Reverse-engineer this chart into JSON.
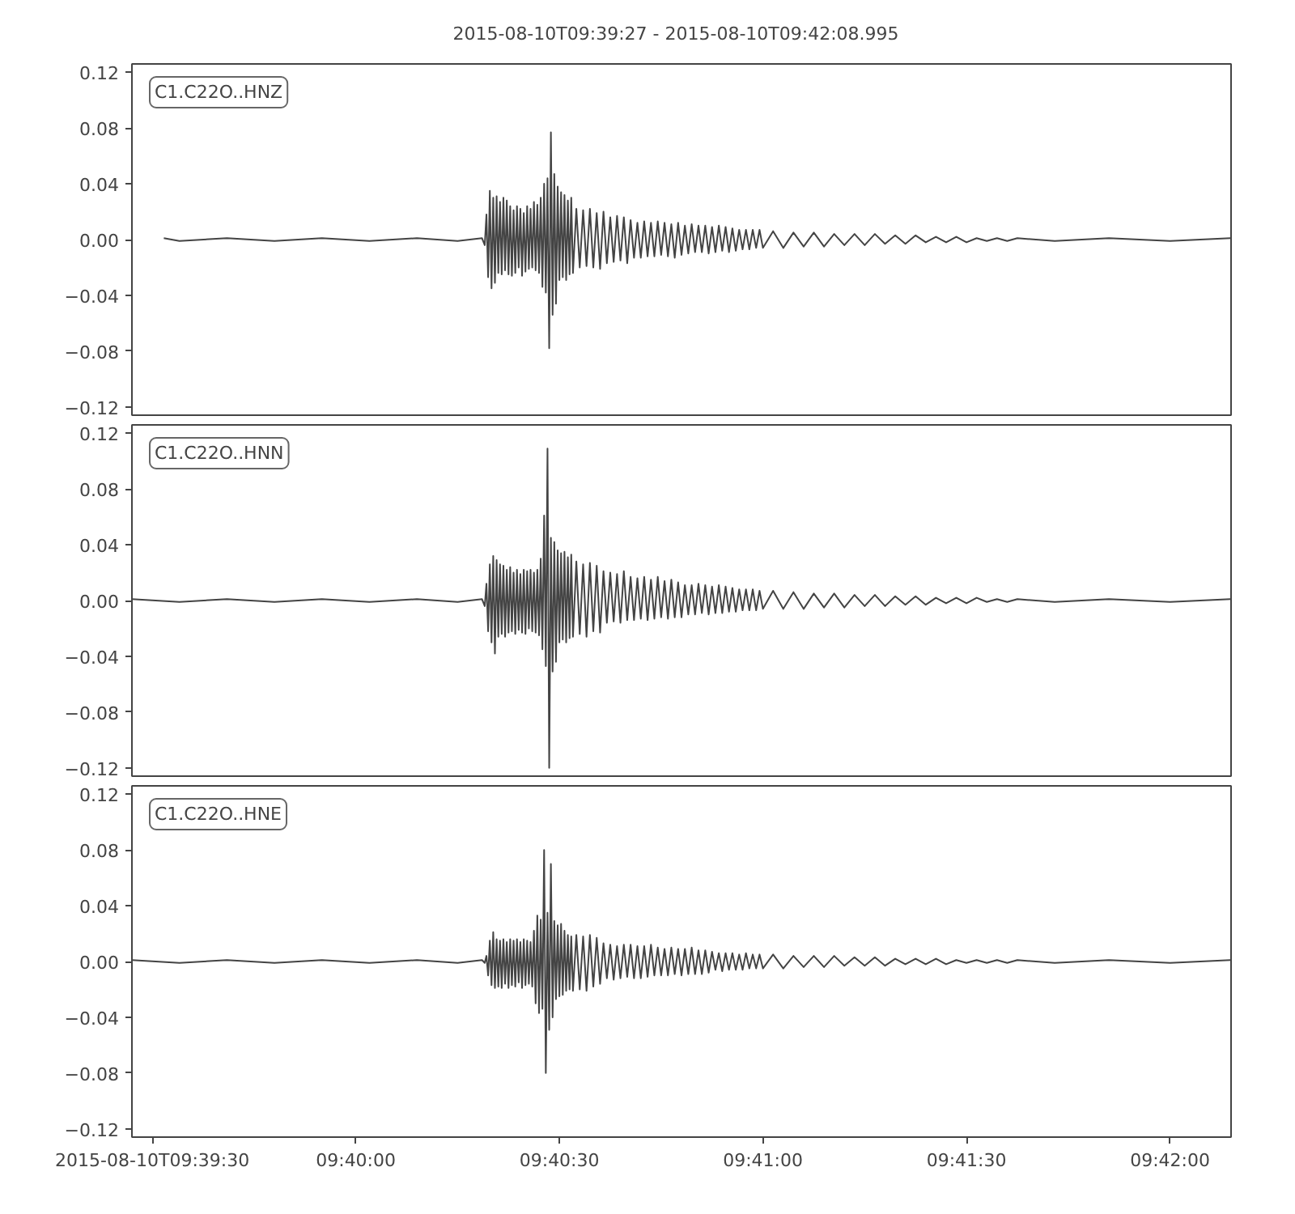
{
  "chart_data": [
    {
      "type": "line",
      "title": "2015-08-10T09:39:27  -  2015-08-10T09:42:08.995",
      "annotations": [
        "C1.C22O..HNZ"
      ],
      "color": "#444444",
      "tick_labels": "y",
      "xlim": [
        "2015-08-10T09:39:27",
        "2015-08-10T09:42:08.995"
      ],
      "ylim": [
        -0.126,
        0.126
      ],
      "yticks": [
        {
          "value": -0.12,
          "label": "−0.12"
        },
        {
          "value": -0.08,
          "label": "−0.08"
        },
        {
          "value": -0.04,
          "label": "−0.04"
        },
        {
          "value": 0,
          "label": "0.00"
        },
        0.04,
        0.08,
        0.12
      ],
      "x": [
        "2015-08-10T09:39:31.7",
        "2015-08-10T09:39:34",
        "2015-08-10T09:39:41",
        "2015-08-10T09:39:48",
        "2015-08-10T09:39:55",
        "2015-08-10T09:40:02",
        "2015-08-10T09:40:09",
        "2015-08-10T09:40:15",
        "2015-08-10T09:40:18.6",
        "2015-08-10T09:40:19",
        "2015-08-10T09:40:19.25",
        "2015-08-10T09:40:19.5",
        "2015-08-10T09:40:19.75",
        "2015-08-10T09:40:20",
        "2015-08-10T09:40:20.25",
        "2015-08-10T09:40:20.5",
        "2015-08-10T09:40:20.75",
        "2015-08-10T09:40:21",
        "2015-08-10T09:40:21.25",
        "2015-08-10T09:40:21.5",
        "2015-08-10T09:40:21.75",
        "2015-08-10T09:40:22",
        "2015-08-10T09:40:22.25",
        "2015-08-10T09:40:22.5",
        "2015-08-10T09:40:22.75",
        "2015-08-10T09:40:23",
        "2015-08-10T09:40:23.25",
        "2015-08-10T09:40:23.5",
        "2015-08-10T09:40:23.75",
        "2015-08-10T09:40:24",
        "2015-08-10T09:40:24.25",
        "2015-08-10T09:40:24.5",
        "2015-08-10T09:40:24.75",
        "2015-08-10T09:40:25",
        "2015-08-10T09:40:25.25",
        "2015-08-10T09:40:25.5",
        "2015-08-10T09:40:25.75",
        "2015-08-10T09:40:26",
        "2015-08-10T09:40:26.25",
        "2015-08-10T09:40:26.5",
        "2015-08-10T09:40:26.75",
        "2015-08-10T09:40:27",
        "2015-08-10T09:40:27.25",
        "2015-08-10T09:40:27.5",
        "2015-08-10T09:40:27.75",
        "2015-08-10T09:40:28",
        "2015-08-10T09:40:28.25",
        "2015-08-10T09:40:28.5",
        "2015-08-10T09:40:28.75",
        "2015-08-10T09:40:29",
        "2015-08-10T09:40:29.25",
        "2015-08-10T09:40:29.5",
        "2015-08-10T09:40:29.75",
        "2015-08-10T09:40:30",
        "2015-08-10T09:40:30.25",
        "2015-08-10T09:40:30.5",
        "2015-08-10T09:40:30.75",
        "2015-08-10T09:40:31",
        "2015-08-10T09:40:31.25",
        "2015-08-10T09:40:31.5",
        "2015-08-10T09:40:31.75",
        "2015-08-10T09:40:32",
        "2015-08-10T09:40:32.5",
        "2015-08-10T09:40:33",
        "2015-08-10T09:40:33.5",
        "2015-08-10T09:40:34",
        "2015-08-10T09:40:34.5",
        "2015-08-10T09:40:35",
        "2015-08-10T09:40:35.5",
        "2015-08-10T09:40:36",
        "2015-08-10T09:40:36.5",
        "2015-08-10T09:40:37",
        "2015-08-10T09:40:37.5",
        "2015-08-10T09:40:38",
        "2015-08-10T09:40:38.5",
        "2015-08-10T09:40:39",
        "2015-08-10T09:40:39.5",
        "2015-08-10T09:40:40",
        "2015-08-10T09:40:40.5",
        "2015-08-10T09:40:41",
        "2015-08-10T09:40:41.5",
        "2015-08-10T09:40:42",
        "2015-08-10T09:40:42.5",
        "2015-08-10T09:40:43",
        "2015-08-10T09:40:43.5",
        "2015-08-10T09:40:44",
        "2015-08-10T09:40:44.5",
        "2015-08-10T09:40:45",
        "2015-08-10T09:40:45.5",
        "2015-08-10T09:40:46",
        "2015-08-10T09:40:46.5",
        "2015-08-10T09:40:47",
        "2015-08-10T09:40:47.5",
        "2015-08-10T09:40:48",
        "2015-08-10T09:40:48.5",
        "2015-08-10T09:40:49",
        "2015-08-10T09:40:49.5",
        "2015-08-10T09:40:50",
        "2015-08-10T09:40:50.5",
        "2015-08-10T09:40:51",
        "2015-08-10T09:40:51.5",
        "2015-08-10T09:40:52",
        "2015-08-10T09:40:52.5",
        "2015-08-10T09:40:53",
        "2015-08-10T09:40:53.5",
        "2015-08-10T09:40:54",
        "2015-08-10T09:40:54.5",
        "2015-08-10T09:40:55",
        "2015-08-10T09:40:55.5",
        "2015-08-10T09:40:56",
        "2015-08-10T09:40:56.5",
        "2015-08-10T09:40:57",
        "2015-08-10T09:40:57.5",
        "2015-08-10T09:40:58",
        "2015-08-10T09:40:58.5",
        "2015-08-10T09:40:59",
        "2015-08-10T09:40:59.5",
        "2015-08-10T09:41:00",
        "2015-08-10T09:41:01.5",
        "2015-08-10T09:41:03",
        "2015-08-10T09:41:04.5",
        "2015-08-10T09:41:06",
        "2015-08-10T09:41:07.5",
        "2015-08-10T09:41:09",
        "2015-08-10T09:41:10.5",
        "2015-08-10T09:41:12",
        "2015-08-10T09:41:13.5",
        "2015-08-10T09:41:15",
        "2015-08-10T09:41:16.5",
        "2015-08-10T09:41:18",
        "2015-08-10T09:41:19.5",
        "2015-08-10T09:41:21",
        "2015-08-10T09:41:22.5",
        "2015-08-10T09:41:24",
        "2015-08-10T09:41:25.5",
        "2015-08-10T09:41:27",
        "2015-08-10T09:41:28.5",
        "2015-08-10T09:41:30",
        "2015-08-10T09:41:31.5",
        "2015-08-10T09:41:33",
        "2015-08-10T09:41:34.5",
        "2015-08-10T09:41:36",
        "2015-08-10T09:41:37.5",
        "2015-08-10T09:41:43",
        "2015-08-10T09:41:51",
        "2015-08-10T09:42:00",
        "2015-08-10T09:42:08.9"
      ],
      "values": [
        0.001,
        -0.001,
        0.001,
        -0.001,
        0.001,
        -0.001,
        0.001,
        -0.001,
        0.001,
        -0.004,
        0.018,
        -0.027,
        0.035,
        -0.035,
        0.03,
        -0.031,
        0.031,
        -0.024,
        0.027,
        -0.025,
        0.03,
        -0.022,
        0.028,
        -0.025,
        0.024,
        -0.026,
        0.021,
        -0.024,
        0.024,
        -0.02,
        0.022,
        -0.026,
        0.019,
        -0.023,
        0.024,
        -0.021,
        0.022,
        -0.02,
        0.027,
        -0.022,
        0.025,
        -0.024,
        0.03,
        -0.034,
        0.04,
        -0.038,
        0.044,
        -0.078,
        0.077,
        -0.054,
        0.047,
        -0.046,
        0.038,
        -0.029,
        0.034,
        -0.027,
        0.032,
        -0.029,
        0.028,
        -0.025,
        0.03,
        -0.024,
        0.022,
        -0.02,
        0.021,
        -0.019,
        0.022,
        -0.02,
        0.019,
        -0.021,
        0.02,
        -0.017,
        0.016,
        -0.016,
        0.017,
        -0.015,
        0.016,
        -0.017,
        0.014,
        -0.013,
        0.012,
        -0.013,
        0.013,
        -0.012,
        0.012,
        -0.012,
        0.013,
        -0.011,
        0.012,
        -0.012,
        0.011,
        -0.013,
        0.012,
        -0.011,
        0.01,
        -0.01,
        0.011,
        -0.009,
        0.01,
        -0.009,
        0.01,
        -0.01,
        0.009,
        -0.009,
        0.01,
        -0.008,
        0.009,
        -0.009,
        0.008,
        -0.008,
        0.007,
        -0.007,
        0.007,
        -0.007,
        0.007,
        -0.006,
        0.007,
        -0.006,
        0.006,
        -0.006,
        0.005,
        -0.005,
        0.005,
        -0.005,
        0.004,
        -0.004,
        0.004,
        -0.004,
        0.004,
        -0.003,
        0.003,
        -0.003,
        0.003,
        -0.002,
        0.002,
        -0.002,
        0.002,
        -0.002,
        0.001,
        -0.001,
        0.001,
        -0.001,
        0.001,
        -0.001,
        0.001,
        -0.001,
        0.001
      ]
    },
    {
      "type": "line",
      "annotations": [
        "C1.C22O..HNN"
      ],
      "color": "#444444",
      "tick_labels": "y",
      "xlim": [
        "2015-08-10T09:39:27",
        "2015-08-10T09:42:08.995"
      ],
      "ylim": [
        -0.126,
        0.126
      ],
      "yticks": [
        {
          "value": -0.12,
          "label": "−0.12"
        },
        {
          "value": -0.08,
          "label": "−0.08"
        },
        {
          "value": -0.04,
          "label": "−0.04"
        },
        {
          "value": 0,
          "label": "0.00"
        },
        0.04,
        0.08,
        0.12
      ],
      "x": [
        "2015-08-10T09:39:27",
        "2015-08-10T09:39:34",
        "2015-08-10T09:39:41",
        "2015-08-10T09:39:48",
        "2015-08-10T09:39:55",
        "2015-08-10T09:40:02",
        "2015-08-10T09:40:09",
        "2015-08-10T09:40:15",
        "2015-08-10T09:40:18.6",
        "2015-08-10T09:40:19",
        "2015-08-10T09:40:19.25",
        "2015-08-10T09:40:19.5",
        "2015-08-10T09:40:19.75",
        "2015-08-10T09:40:20",
        "2015-08-10T09:40:20.25",
        "2015-08-10T09:40:20.5",
        "2015-08-10T09:40:20.75",
        "2015-08-10T09:40:21",
        "2015-08-10T09:40:21.25",
        "2015-08-10T09:40:21.5",
        "2015-08-10T09:40:21.75",
        "2015-08-10T09:40:22",
        "2015-08-10T09:40:22.25",
        "2015-08-10T09:40:22.5",
        "2015-08-10T09:40:22.75",
        "2015-08-10T09:40:23",
        "2015-08-10T09:40:23.25",
        "2015-08-10T09:40:23.5",
        "2015-08-10T09:40:23.75",
        "2015-08-10T09:40:24",
        "2015-08-10T09:40:24.25",
        "2015-08-10T09:40:24.5",
        "2015-08-10T09:40:24.75",
        "2015-08-10T09:40:25",
        "2015-08-10T09:40:25.25",
        "2015-08-10T09:40:25.5",
        "2015-08-10T09:40:25.75",
        "2015-08-10T09:40:26",
        "2015-08-10T09:40:26.25",
        "2015-08-10T09:40:26.5",
        "2015-08-10T09:40:26.75",
        "2015-08-10T09:40:27",
        "2015-08-10T09:40:27.25",
        "2015-08-10T09:40:27.5",
        "2015-08-10T09:40:27.75",
        "2015-08-10T09:40:28",
        "2015-08-10T09:40:28.25",
        "2015-08-10T09:40:28.5",
        "2015-08-10T09:40:28.75",
        "2015-08-10T09:40:29",
        "2015-08-10T09:40:29.25",
        "2015-08-10T09:40:29.5",
        "2015-08-10T09:40:29.75",
        "2015-08-10T09:40:30",
        "2015-08-10T09:40:30.25",
        "2015-08-10T09:40:30.5",
        "2015-08-10T09:40:30.75",
        "2015-08-10T09:40:31",
        "2015-08-10T09:40:31.25",
        "2015-08-10T09:40:31.5",
        "2015-08-10T09:40:31.75",
        "2015-08-10T09:40:32",
        "2015-08-10T09:40:32.5",
        "2015-08-10T09:40:33",
        "2015-08-10T09:40:33.5",
        "2015-08-10T09:40:34",
        "2015-08-10T09:40:34.5",
        "2015-08-10T09:40:35",
        "2015-08-10T09:40:35.5",
        "2015-08-10T09:40:36",
        "2015-08-10T09:40:36.5",
        "2015-08-10T09:40:37",
        "2015-08-10T09:40:37.5",
        "2015-08-10T09:40:38",
        "2015-08-10T09:40:38.5",
        "2015-08-10T09:40:39",
        "2015-08-10T09:40:39.5",
        "2015-08-10T09:40:40",
        "2015-08-10T09:40:40.5",
        "2015-08-10T09:40:41",
        "2015-08-10T09:40:41.5",
        "2015-08-10T09:40:42",
        "2015-08-10T09:40:42.5",
        "2015-08-10T09:40:43",
        "2015-08-10T09:40:43.5",
        "2015-08-10T09:40:44",
        "2015-08-10T09:40:44.5",
        "2015-08-10T09:40:45",
        "2015-08-10T09:40:45.5",
        "2015-08-10T09:40:46",
        "2015-08-10T09:40:46.5",
        "2015-08-10T09:40:47",
        "2015-08-10T09:40:47.5",
        "2015-08-10T09:40:48",
        "2015-08-10T09:40:48.5",
        "2015-08-10T09:40:49",
        "2015-08-10T09:40:49.5",
        "2015-08-10T09:40:50",
        "2015-08-10T09:40:50.5",
        "2015-08-10T09:40:51",
        "2015-08-10T09:40:51.5",
        "2015-08-10T09:40:52",
        "2015-08-10T09:40:52.5",
        "2015-08-10T09:40:53",
        "2015-08-10T09:40:53.5",
        "2015-08-10T09:40:54",
        "2015-08-10T09:40:54.5",
        "2015-08-10T09:40:55",
        "2015-08-10T09:40:55.5",
        "2015-08-10T09:40:56",
        "2015-08-10T09:40:56.5",
        "2015-08-10T09:40:57",
        "2015-08-10T09:40:57.5",
        "2015-08-10T09:40:58",
        "2015-08-10T09:40:58.5",
        "2015-08-10T09:40:59",
        "2015-08-10T09:40:59.5",
        "2015-08-10T09:41:00",
        "2015-08-10T09:41:01.5",
        "2015-08-10T09:41:03",
        "2015-08-10T09:41:04.5",
        "2015-08-10T09:41:06",
        "2015-08-10T09:41:07.5",
        "2015-08-10T09:41:09",
        "2015-08-10T09:41:10.5",
        "2015-08-10T09:41:12",
        "2015-08-10T09:41:13.5",
        "2015-08-10T09:41:15",
        "2015-08-10T09:41:16.5",
        "2015-08-10T09:41:18",
        "2015-08-10T09:41:19.5",
        "2015-08-10T09:41:21",
        "2015-08-10T09:41:22.5",
        "2015-08-10T09:41:24",
        "2015-08-10T09:41:25.5",
        "2015-08-10T09:41:27",
        "2015-08-10T09:41:28.5",
        "2015-08-10T09:41:30",
        "2015-08-10T09:41:31.5",
        "2015-08-10T09:41:33",
        "2015-08-10T09:41:34.5",
        "2015-08-10T09:41:36",
        "2015-08-10T09:41:37.5",
        "2015-08-10T09:41:43",
        "2015-08-10T09:41:51",
        "2015-08-10T09:42:00",
        "2015-08-10T09:42:08.9"
      ],
      "values": [
        0.001,
        -0.001,
        0.001,
        -0.001,
        0.001,
        -0.001,
        0.001,
        -0.001,
        0.001,
        -0.004,
        0.012,
        -0.022,
        0.026,
        -0.03,
        0.032,
        -0.038,
        0.029,
        -0.026,
        0.026,
        -0.024,
        0.025,
        -0.026,
        0.022,
        -0.023,
        0.024,
        -0.022,
        0.02,
        -0.024,
        0.022,
        -0.021,
        0.019,
        -0.023,
        0.022,
        -0.024,
        0.021,
        -0.02,
        0.022,
        -0.022,
        0.02,
        -0.023,
        0.022,
        -0.025,
        0.03,
        -0.035,
        0.061,
        -0.047,
        0.109,
        -0.12,
        0.045,
        -0.051,
        0.042,
        -0.044,
        0.036,
        -0.03,
        0.034,
        -0.028,
        0.035,
        -0.03,
        0.031,
        -0.027,
        0.033,
        -0.026,
        0.028,
        -0.024,
        0.026,
        -0.026,
        0.027,
        -0.022,
        0.025,
        -0.023,
        0.021,
        -0.016,
        0.02,
        -0.015,
        0.019,
        -0.016,
        0.021,
        -0.014,
        0.017,
        -0.014,
        0.016,
        -0.013,
        0.017,
        -0.014,
        0.015,
        -0.013,
        0.017,
        -0.012,
        0.014,
        -0.013,
        0.015,
        -0.012,
        0.013,
        -0.012,
        0.011,
        -0.01,
        0.011,
        -0.01,
        0.012,
        -0.009,
        0.011,
        -0.01,
        0.01,
        -0.009,
        0.011,
        -0.009,
        0.01,
        -0.008,
        0.009,
        -0.008,
        0.008,
        -0.007,
        0.008,
        -0.007,
        0.008,
        -0.007,
        0.007,
        -0.006,
        0.007,
        -0.006,
        0.006,
        -0.006,
        0.005,
        -0.005,
        0.005,
        -0.005,
        0.004,
        -0.004,
        0.004,
        -0.004,
        0.003,
        -0.003,
        0.003,
        -0.003,
        0.002,
        -0.002,
        0.002,
        -0.002,
        0.002,
        -0.001,
        0.001,
        -0.001,
        0.001,
        -0.001,
        0.001,
        -0.001,
        0.001
      ]
    },
    {
      "type": "line",
      "annotations": [
        "C1.C22O..HNE"
      ],
      "color": "#444444",
      "xlim": [
        "2015-08-10T09:39:27",
        "2015-08-10T09:42:08.995"
      ],
      "xticks": [
        {
          "value": "2015-08-10T09:39:30",
          "label": "2015-08-10T09:39:30"
        },
        {
          "value": "2015-08-10T09:40:00",
          "label": "09:40:00"
        },
        {
          "value": "2015-08-10T09:40:30",
          "label": "09:40:30"
        },
        {
          "value": "2015-08-10T09:41:00",
          "label": "09:41:00"
        },
        {
          "value": "2015-08-10T09:41:30",
          "label": "09:41:30"
        },
        {
          "value": "2015-08-10T09:42:00",
          "label": "09:42:00"
        }
      ],
      "ylim": [
        -0.126,
        0.126
      ],
      "yticks": [
        {
          "value": -0.12,
          "label": "−0.12"
        },
        {
          "value": -0.08,
          "label": "−0.08"
        },
        {
          "value": -0.04,
          "label": "−0.04"
        },
        {
          "value": 0,
          "label": "0.00"
        },
        0.04,
        0.08,
        0.12
      ],
      "x": [
        "2015-08-10T09:39:27",
        "2015-08-10T09:39:34",
        "2015-08-10T09:39:41",
        "2015-08-10T09:39:48",
        "2015-08-10T09:39:55",
        "2015-08-10T09:40:02",
        "2015-08-10T09:40:09",
        "2015-08-10T09:40:15",
        "2015-08-10T09:40:18.6",
        "2015-08-10T09:40:19",
        "2015-08-10T09:40:19.25",
        "2015-08-10T09:40:19.5",
        "2015-08-10T09:40:19.75",
        "2015-08-10T09:40:20",
        "2015-08-10T09:40:20.25",
        "2015-08-10T09:40:20.5",
        "2015-08-10T09:40:20.75",
        "2015-08-10T09:40:21",
        "2015-08-10T09:40:21.25",
        "2015-08-10T09:40:21.5",
        "2015-08-10T09:40:21.75",
        "2015-08-10T09:40:22",
        "2015-08-10T09:40:22.25",
        "2015-08-10T09:40:22.5",
        "2015-08-10T09:40:22.75",
        "2015-08-10T09:40:23",
        "2015-08-10T09:40:23.25",
        "2015-08-10T09:40:23.5",
        "2015-08-10T09:40:23.75",
        "2015-08-10T09:40:24",
        "2015-08-10T09:40:24.25",
        "2015-08-10T09:40:24.5",
        "2015-08-10T09:40:24.75",
        "2015-08-10T09:40:25",
        "2015-08-10T09:40:25.25",
        "2015-08-10T09:40:25.5",
        "2015-08-10T09:40:25.75",
        "2015-08-10T09:40:26",
        "2015-08-10T09:40:26.25",
        "2015-08-10T09:40:26.5",
        "2015-08-10T09:40:26.75",
        "2015-08-10T09:40:27",
        "2015-08-10T09:40:27.25",
        "2015-08-10T09:40:27.5",
        "2015-08-10T09:40:27.75",
        "2015-08-10T09:40:28",
        "2015-08-10T09:40:28.25",
        "2015-08-10T09:40:28.5",
        "2015-08-10T09:40:28.75",
        "2015-08-10T09:40:29",
        "2015-08-10T09:40:29.25",
        "2015-08-10T09:40:29.5",
        "2015-08-10T09:40:29.75",
        "2015-08-10T09:40:30",
        "2015-08-10T09:40:30.25",
        "2015-08-10T09:40:30.5",
        "2015-08-10T09:40:30.75",
        "2015-08-10T09:40:31",
        "2015-08-10T09:40:31.25",
        "2015-08-10T09:40:31.5",
        "2015-08-10T09:40:31.75",
        "2015-08-10T09:40:32",
        "2015-08-10T09:40:32.5",
        "2015-08-10T09:40:33",
        "2015-08-10T09:40:33.5",
        "2015-08-10T09:40:34",
        "2015-08-10T09:40:34.5",
        "2015-08-10T09:40:35",
        "2015-08-10T09:40:35.5",
        "2015-08-10T09:40:36",
        "2015-08-10T09:40:36.5",
        "2015-08-10T09:40:37",
        "2015-08-10T09:40:37.5",
        "2015-08-10T09:40:38",
        "2015-08-10T09:40:38.5",
        "2015-08-10T09:40:39",
        "2015-08-10T09:40:39.5",
        "2015-08-10T09:40:40",
        "2015-08-10T09:40:40.5",
        "2015-08-10T09:40:41",
        "2015-08-10T09:40:41.5",
        "2015-08-10T09:40:42",
        "2015-08-10T09:40:42.5",
        "2015-08-10T09:40:43",
        "2015-08-10T09:40:43.5",
        "2015-08-10T09:40:44",
        "2015-08-10T09:40:44.5",
        "2015-08-10T09:40:45",
        "2015-08-10T09:40:45.5",
        "2015-08-10T09:40:46",
        "2015-08-10T09:40:46.5",
        "2015-08-10T09:40:47",
        "2015-08-10T09:40:47.5",
        "2015-08-10T09:40:48",
        "2015-08-10T09:40:48.5",
        "2015-08-10T09:40:49",
        "2015-08-10T09:40:49.5",
        "2015-08-10T09:40:50",
        "2015-08-10T09:40:50.5",
        "2015-08-10T09:40:51",
        "2015-08-10T09:40:51.5",
        "2015-08-10T09:40:52",
        "2015-08-10T09:40:52.5",
        "2015-08-10T09:40:53",
        "2015-08-10T09:40:53.5",
        "2015-08-10T09:40:54",
        "2015-08-10T09:40:54.5",
        "2015-08-10T09:40:55",
        "2015-08-10T09:40:55.5",
        "2015-08-10T09:40:56",
        "2015-08-10T09:40:56.5",
        "2015-08-10T09:40:57",
        "2015-08-10T09:40:57.5",
        "2015-08-10T09:40:58",
        "2015-08-10T09:40:58.5",
        "2015-08-10T09:40:59",
        "2015-08-10T09:40:59.5",
        "2015-08-10T09:41:00",
        "2015-08-10T09:41:01.5",
        "2015-08-10T09:41:03",
        "2015-08-10T09:41:04.5",
        "2015-08-10T09:41:06",
        "2015-08-10T09:41:07.5",
        "2015-08-10T09:41:09",
        "2015-08-10T09:41:10.5",
        "2015-08-10T09:41:12",
        "2015-08-10T09:41:13.5",
        "2015-08-10T09:41:15",
        "2015-08-10T09:41:16.5",
        "2015-08-10T09:41:18",
        "2015-08-10T09:41:19.5",
        "2015-08-10T09:41:21",
        "2015-08-10T09:41:22.5",
        "2015-08-10T09:41:24",
        "2015-08-10T09:41:25.5",
        "2015-08-10T09:41:27",
        "2015-08-10T09:41:28.5",
        "2015-08-10T09:41:30",
        "2015-08-10T09:41:31.5",
        "2015-08-10T09:41:33",
        "2015-08-10T09:41:34.5",
        "2015-08-10T09:41:36",
        "2015-08-10T09:41:37.5",
        "2015-08-10T09:41:43",
        "2015-08-10T09:41:51",
        "2015-08-10T09:42:00",
        "2015-08-10T09:42:08.9"
      ],
      "values": [
        0.001,
        -0.001,
        0.001,
        -0.001,
        0.001,
        -0.001,
        0.001,
        -0.001,
        0.001,
        -0.001,
        0.004,
        -0.01,
        0.015,
        -0.017,
        0.021,
        -0.019,
        0.016,
        -0.018,
        0.015,
        -0.019,
        0.016,
        -0.016,
        0.014,
        -0.019,
        0.016,
        -0.017,
        0.015,
        -0.018,
        0.016,
        -0.015,
        0.014,
        -0.019,
        0.016,
        -0.017,
        0.015,
        -0.016,
        0.014,
        -0.018,
        0.022,
        -0.03,
        0.033,
        -0.037,
        0.03,
        -0.034,
        0.08,
        -0.08,
        0.035,
        -0.049,
        0.07,
        -0.04,
        0.029,
        -0.027,
        0.026,
        -0.025,
        0.027,
        -0.024,
        0.022,
        -0.021,
        0.019,
        -0.02,
        0.018,
        -0.021,
        0.019,
        -0.02,
        0.018,
        -0.021,
        0.019,
        -0.018,
        0.017,
        -0.016,
        0.013,
        -0.012,
        0.012,
        -0.013,
        0.011,
        -0.012,
        0.012,
        -0.011,
        0.012,
        -0.012,
        0.011,
        -0.012,
        0.011,
        -0.011,
        0.012,
        -0.01,
        0.01,
        -0.01,
        0.009,
        -0.01,
        0.01,
        -0.009,
        0.009,
        -0.01,
        0.009,
        -0.009,
        0.01,
        -0.009,
        0.008,
        -0.009,
        0.008,
        -0.008,
        0.007,
        -0.006,
        0.006,
        -0.007,
        0.006,
        -0.006,
        0.006,
        -0.006,
        0.005,
        -0.006,
        0.006,
        -0.005,
        0.005,
        -0.005,
        0.005,
        -0.005,
        0.005,
        -0.005,
        0.004,
        -0.004,
        0.004,
        -0.004,
        0.004,
        -0.003,
        0.003,
        -0.003,
        0.003,
        -0.003,
        0.002,
        -0.002,
        0.002,
        -0.002,
        0.002,
        -0.002,
        0.001,
        -0.001,
        0.001,
        -0.001,
        0.001,
        -0.001,
        0.001,
        -0.001,
        0.001,
        -0.001,
        0.001
      ]
    }
  ]
}
